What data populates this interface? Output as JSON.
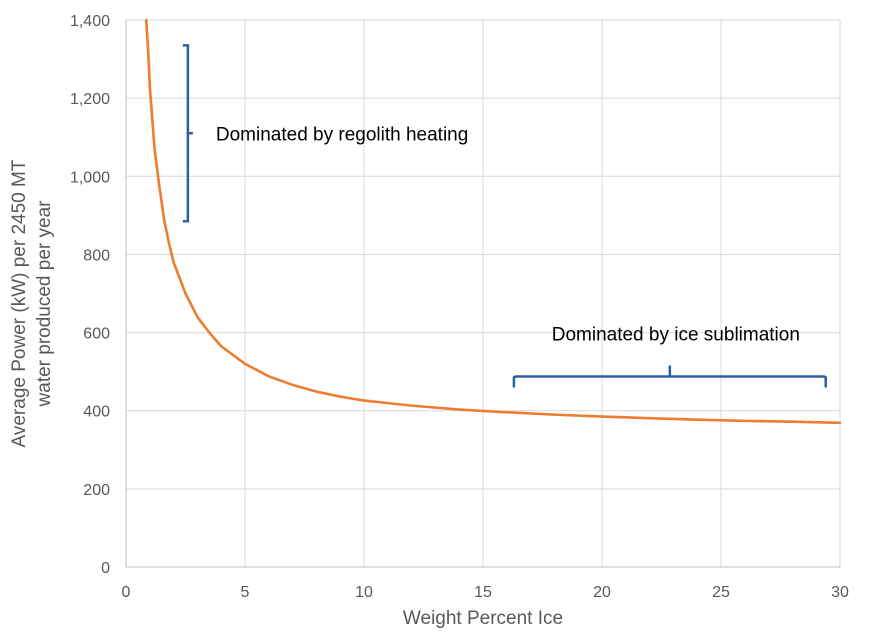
{
  "chart_data": {
    "type": "line",
    "title": "",
    "xlabel": "Weight Percent Ice",
    "ylabel_lines": [
      "Average Power (kW) per 2450 MT",
      "water produced per year"
    ],
    "xlim": [
      0,
      30
    ],
    "ylim": [
      0,
      1400
    ],
    "xticks": [
      0,
      5,
      10,
      15,
      20,
      25,
      30
    ],
    "yticks": [
      0,
      200,
      400,
      600,
      800,
      1000,
      1200,
      1400
    ],
    "xtick_labels": [
      "0",
      "5",
      "10",
      "15",
      "20",
      "25",
      "30"
    ],
    "ytick_labels": [
      "0",
      "200",
      "400",
      "600",
      "800",
      "1,000",
      "1,200",
      "1,400"
    ],
    "grid": true,
    "series": [
      {
        "name": "Average Power",
        "color": "#ED7D31",
        "x": [
          0.85,
          0.95,
          1.0,
          1.2,
          1.4,
          1.6,
          1.8,
          2.0,
          2.5,
          3.0,
          3.5,
          4.0,
          5.0,
          6.0,
          7.0,
          8.0,
          9.0,
          10.0,
          12.0,
          14.0,
          16.0,
          18.0,
          20.0,
          22.0,
          24.0,
          26.0,
          28.0,
          30.0
        ],
        "y": [
          1400,
          1300,
          1230,
          1070,
          975,
          890,
          830,
          780,
          700,
          640,
          600,
          565,
          520,
          488,
          466,
          449,
          436,
          426,
          413,
          403,
          396,
          390,
          385,
          381,
          377,
          374,
          372,
          369
        ]
      }
    ],
    "annotations": [
      {
        "text": "Dominated by regolith heating",
        "bracket": "vertical",
        "x": 2.6,
        "y_range": [
          885,
          1335
        ]
      },
      {
        "text": "Dominated by ice sublimation",
        "bracket": "horizontal",
        "y": 485,
        "x_range": [
          16.3,
          29.4
        ]
      }
    ],
    "colors": {
      "grid": "#D9D9D9",
      "bracket": "#2E5FA3",
      "line": "#ED7D31"
    }
  }
}
